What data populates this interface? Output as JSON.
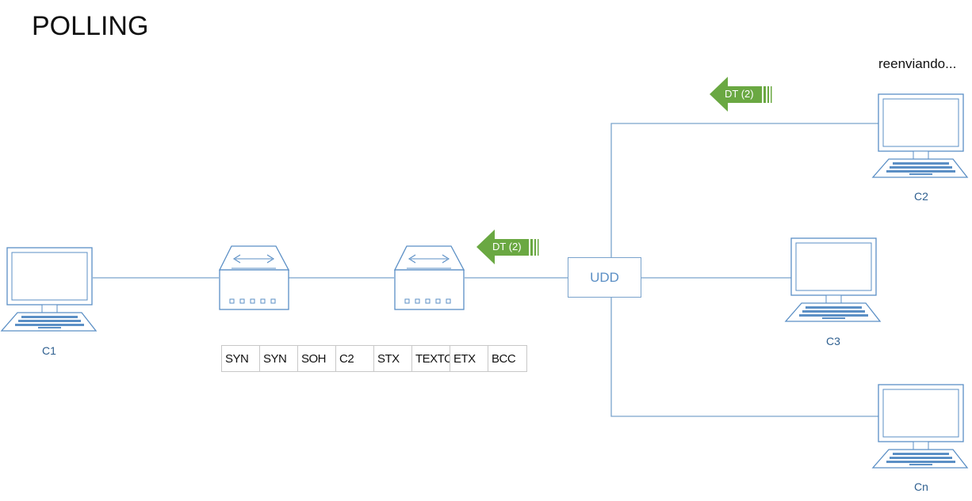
{
  "title": "POLLING",
  "status": "reenviando...",
  "nodes": {
    "c1": "C1",
    "c2": "C2",
    "c3": "C3",
    "cn": "Cn",
    "udd": "UDD"
  },
  "frame_fields": [
    "SYN",
    "SYN",
    "SOH",
    "C2",
    "STX",
    "TEXTO",
    "ETX",
    "BCC"
  ],
  "messages": {
    "upper": "DT (2)",
    "lower": "DT (2)"
  },
  "colors": {
    "line": "#7aa3cc",
    "arrow": "#6aa842",
    "label": "#2e5f8f"
  }
}
